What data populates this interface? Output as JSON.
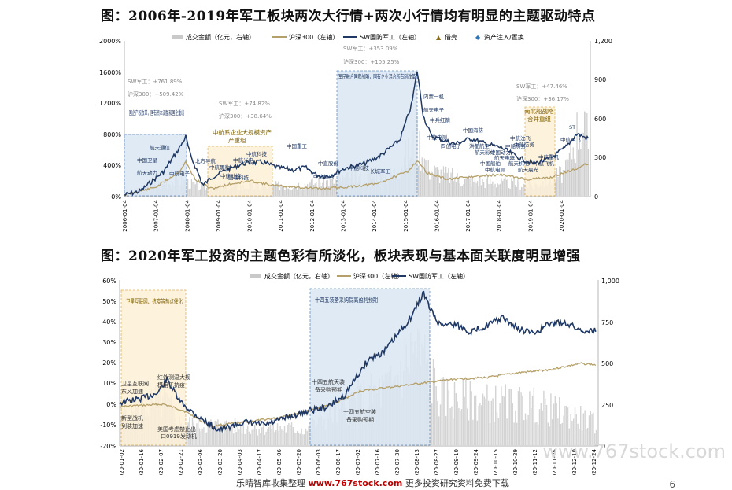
{
  "charts": [
    {
      "title": "图：2006年-2019年军工板块两次大行情+两次小行情均有明显的主题驱动特点",
      "legend": [
        "成交金额（亿元，右轴）",
        "沪深300（左轴）",
        "SW国防军工（左轴）",
        "借壳",
        "资产注入/置换"
      ],
      "left_ticks": [
        "2000%",
        "1600%",
        "1200%",
        "800%",
        "400%",
        "0%"
      ],
      "right_ticks": [
        "1,200",
        "900",
        "600",
        "300",
        "0"
      ],
      "x_ticks": [
        "2006-01-04",
        "2007-01-04",
        "2008-01-04",
        "2009-01-04",
        "2010-01-04",
        "2011-01-04",
        "2012-01-04",
        "2013-01-04",
        "2014-01-04",
        "2015-01-04",
        "2016-01-04",
        "2017-01-04",
        "2018-01-04",
        "2019-01-04",
        "2020-01-04"
      ],
      "boxes": [
        {
          "title": "国企产权改革，国有资本调整和国企重组",
          "sw": "SW军工：+761.89%",
          "hs": "沪深300：+509.42%"
        },
        {
          "title": "中航系企业大规模资产",
          "title2": "产重组",
          "sw": "SW军工：+74.82%",
          "hs": "沪深300：+38.64%"
        },
        {
          "title": "军民融合国家战略，国有企业混合所有制改革",
          "sw": "SW军工：+353.09%",
          "hs": "沪深300：+105.25%"
        },
        {
          "title": "南北船战略",
          "title2": "合并重组",
          "sw": "SW军工：+47.46%",
          "hs": "沪深300：+36.17%"
        }
      ],
      "events": [
        "航天通信",
        "中国卫星",
        "航天动力",
        "中航电子",
        "北方导航",
        "中航黑豹",
        "中航动控",
        "中航光电",
        "中航科技",
        "国睿科技",
        "中国重工",
        "中直股份",
        "中航机电",
        "中船科技",
        "长城军工",
        "内蒙一机",
        "航天电子",
        "中兵红箭",
        "航天彩虹",
        "中国动力",
        "四创电子",
        "洪都航空",
        "中航沈飞",
        "航天电器",
        "中国船舶",
        "中船防务",
        "ST",
        "中航西飞",
        "中航重机",
        "中航飞机",
        "航天机电",
        "航天晨光",
        "中航电测",
        "中国海防",
        "中航电测",
        "中船防务"
      ]
    },
    {
      "title": "图：2020年军工投资的主题色彩有所淡化，板块表现与基本面关联度明显增强",
      "legend": [
        "成交金额（亿元，右轴）",
        "沪深300（左轴）",
        "SW国防军工（左轴）"
      ],
      "left_ticks": [
        "60%",
        "50%",
        "40%",
        "30%",
        "20%",
        "10%",
        "0%",
        "-10%",
        "-20%"
      ],
      "right_ticks": [
        "1,000",
        "750",
        "500",
        "250",
        "0"
      ],
      "x_ticks": [
        "2020-01-02",
        "2020-01-16",
        "2020-02-07",
        "2020-02-21",
        "2020-03-06",
        "2020-03-20",
        "2020-04-03",
        "2020-04-17",
        "2020-05-06",
        "2020-05-20",
        "2020-06-03",
        "2020-06-17",
        "2020-07-02",
        "2020-07-16",
        "2020-07-30",
        "2020-08-13",
        "2020-08-27",
        "2020-09-10",
        "2020-09-24",
        "2020-10-15",
        "2020-10-29",
        "2020-11-12",
        "2020-11-26",
        "2020-12-10",
        "2020-12-24"
      ],
      "boxes": [
        {
          "title": "卫星互联网、抗疫等热点催化"
        },
        {
          "title": "十四五装备采购提高盈利预期"
        }
      ],
      "notes": [
        "卫星互联网",
        "东风加速",
        "红外测温大规",
        "模用于抗疫",
        "新型战机",
        "列装加速",
        "美国考虑禁止出",
        "口0919发动机",
        "十四五航天装",
        "备采购预期",
        "十四五航空装",
        "备采购预期"
      ]
    }
  ],
  "footer": {
    "left": "乐晴智库收集整理",
    "brand": "www.767stock.com",
    "right": "更多投资研究资料免费下载"
  },
  "watermark": "www.767stock.com",
  "page": "6"
}
